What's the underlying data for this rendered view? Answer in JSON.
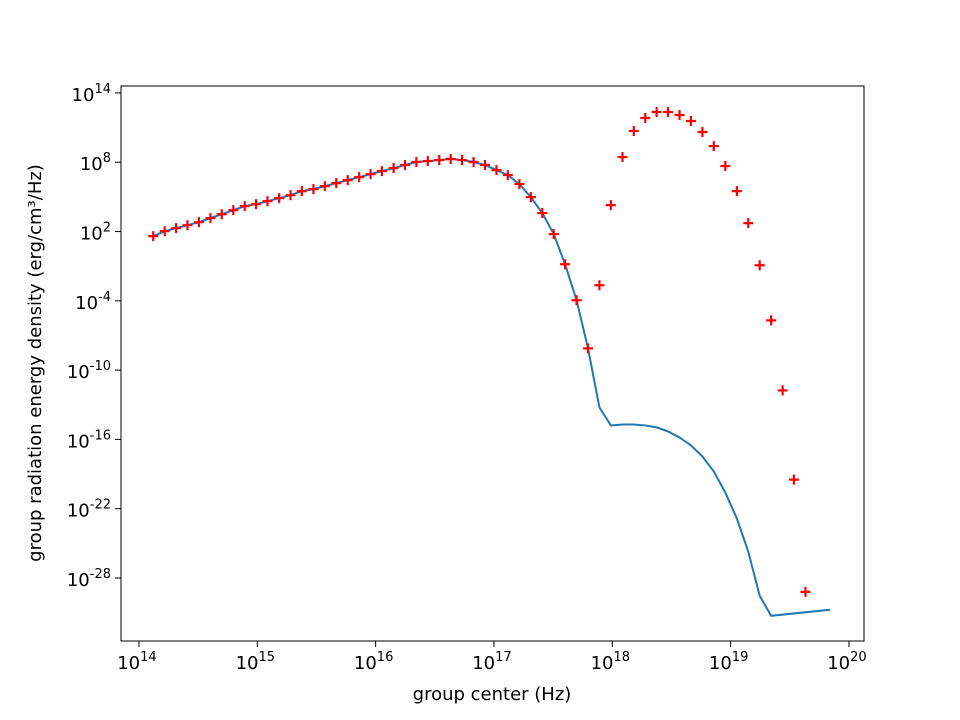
{
  "chart_data": {
    "type": "line",
    "xlabel": "group center (Hz)",
    "ylabel": "group radiation energy density (erg/cm³/Hz)",
    "xscale": "log",
    "yscale": "log",
    "xlim": [
      70500000000000.0,
      1.34e+20
    ],
    "ylim": [
      3.5e-34,
      400000000000000.0
    ],
    "xticks": [
      {
        "value": 100000000000000.0,
        "label": "10^14"
      },
      {
        "value": 1000000000000000.0,
        "label": "10^15"
      },
      {
        "value": 1e+16,
        "label": "10^16"
      },
      {
        "value": 1e+17,
        "label": "10^17"
      },
      {
        "value": 1e+18,
        "label": "10^18"
      },
      {
        "value": 1e+19,
        "label": "10^19"
      },
      {
        "value": 1e+20,
        "label": "10^20"
      }
    ],
    "yticks": [
      {
        "value": 100000000000000.0,
        "label": "10^14"
      },
      {
        "value": 100000000.0,
        "label": "10^8"
      },
      {
        "value": 100.0,
        "label": "10^2"
      },
      {
        "value": 0.0001,
        "label": "10^-4"
      },
      {
        "value": 1e-10,
        "label": "10^-10"
      },
      {
        "value": 1e-16,
        "label": "10^-16"
      },
      {
        "value": 1e-22,
        "label": "10^-22"
      },
      {
        "value": 1e-28,
        "label": "10^-28"
      }
    ],
    "series": [
      {
        "color": "#1f77b4",
        "line": true,
        "x": [
          132000000000000.0,
          165000000000000.0,
          206000000000000.0,
          257000000000000.0,
          321000000000000.0,
          402000000000000.0,
          501000000000000.0,
          627000000000000.0,
          783000000000000.0,
          977000000000000.0,
          1220000000000000.0,
          1530000000000000.0,
          1910000000000000.0,
          2380000000000000.0,
          2980000000000000.0,
          3720000000000000.0,
          4650000000000000.0,
          5810000000000000.0,
          7260000000000000.0,
          9060000000000000.0,
          1.13e+16,
          1.42e+16,
          1.77e+16,
          2.21e+16,
          2.76e+16,
          3.45e+16,
          4.31e+16,
          5.38e+16,
          6.73e+16,
          8.39e+16,
          1.05e+17,
          1.31e+17,
          1.64e+17,
          2.05e+17,
          2.56e+17,
          3.2e+17,
          3.99e+17,
          4.99e+17,
          6.24e+17,
          7.78e+17,
          9.72e+17,
          1.22e+18,
          1.52e+18,
          1.9e+18,
          2.37e+18,
          2.96e+18,
          3.7e+18,
          4.62e+18,
          5.78e+18,
          7.21e+18,
          9.02e+18,
          1.13e+19,
          1.41e+19,
          1.76e+19,
          2.2e+19,
          6.92e+19
        ],
        "values": [
          39.8,
          107.0,
          195.0,
          355.0,
          646.0,
          1450.0,
          3160.0,
          7080.0,
          15800.0,
          23400.0,
          42700.0,
          77600.0,
          141000.0,
          316000.0,
          468000.0,
          851000.0,
          1550000.0,
          2820000.0,
          5130000.0,
          9330000.0,
          17000000.0,
          30900000.0,
          57500000.0,
          105000000.0,
          126000000.0,
          155000000.0,
          191000000.0,
          155000000.0,
          105000000.0,
          57500000.0,
          20900000.0,
          7760000.0,
          1290000.0,
          95500.0,
          3980.0,
          60.3,
          0.148,
          0.000112,
          7.59e-09,
          6.03e-14,
          1.62e-15,
          1.95e-15,
          1.95e-15,
          1.62e-15,
          1.1e-15,
          4.9e-16,
          1.48e-16,
          3.02e-17,
          3.31e-18,
          1.66e-19,
          2.51e-21,
          1.38e-23,
          1.91e-26,
          2.88e-30,
          5.37e-32,
          1.78e-31
        ]
      },
      {
        "color": "#ff0000",
        "line": false,
        "marker": "+",
        "x": [
          132000000000000.0,
          165000000000000.0,
          206000000000000.0,
          257000000000000.0,
          321000000000000.0,
          402000000000000.0,
          501000000000000.0,
          627000000000000.0,
          783000000000000.0,
          977000000000000.0,
          1220000000000000.0,
          1530000000000000.0,
          1910000000000000.0,
          2380000000000000.0,
          2980000000000000.0,
          3720000000000000.0,
          4650000000000000.0,
          5810000000000000.0,
          7260000000000000.0,
          9060000000000000.0,
          1.13e+16,
          1.42e+16,
          1.77e+16,
          2.21e+16,
          2.76e+16,
          3.45e+16,
          4.31e+16,
          5.38e+16,
          6.73e+16,
          8.39e+16,
          1.05e+17,
          1.31e+17,
          1.64e+17,
          2.05e+17,
          2.56e+17,
          3.2e+17,
          3.99e+17,
          4.99e+17,
          6.24e+17,
          7.78e+17,
          9.72e+17,
          1.22e+18,
          1.52e+18,
          1.9e+18,
          2.37e+18,
          2.96e+18,
          3.7e+18,
          4.62e+18,
          5.78e+18,
          7.21e+18,
          9.02e+18,
          1.13e+19,
          1.41e+19,
          1.76e+19,
          2.2e+19,
          2.75e+19,
          3.43e+19,
          4.29e+19
        ],
        "values": [
          39.8,
          107.0,
          195.0,
          355.0,
          646.0,
          1450.0,
          3160.0,
          7080.0,
          15800.0,
          23400.0,
          42700.0,
          77600.0,
          141000.0,
          316000.0,
          468000.0,
          851000.0,
          1550000.0,
          2820000.0,
          5130000.0,
          9330000.0,
          17000000.0,
          30900000.0,
          57500000.0,
          105000000.0,
          126000000.0,
          155000000.0,
          191000000.0,
          155000000.0,
          105000000.0,
          57500000.0,
          20900000.0,
          7760000.0,
          1290000.0,
          95500.0,
          3980.0,
          60.3,
          0.148,
          0.000112,
          7.59e-09,
          0.00224,
          19500.0,
          282000000.0,
          51300000000.0,
          676000000000.0,
          2240000000000.0,
          2240000000000.0,
          1230000000000.0,
          372000000000.0,
          41700000000.0,
          2510000000.0,
          46800000.0,
          316000.0,
          537.0,
          0.12,
          2.04e-06,
          1.74e-12,
          3.31e-20,
          6.31e-30
        ]
      }
    ]
  }
}
